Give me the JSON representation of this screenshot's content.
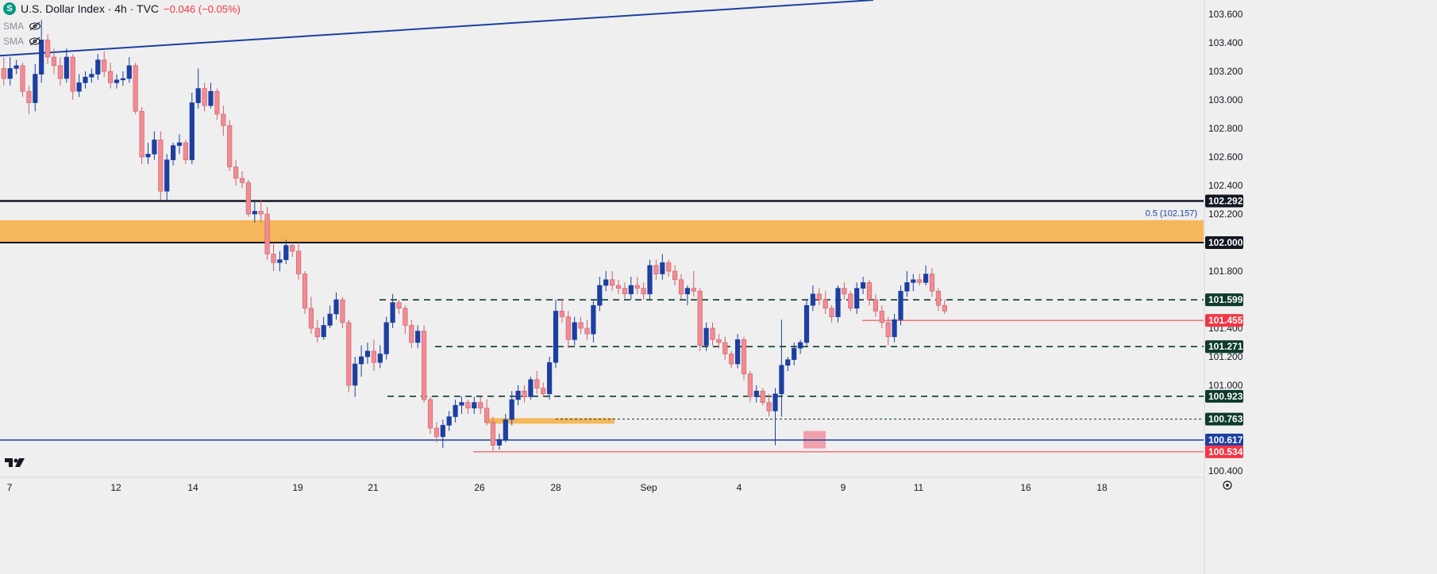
{
  "header": {
    "logo_letter": "S",
    "title": "U.S. Dollar Index · 4h · TVC",
    "change": "−0.046 (−0.05%)",
    "indicators": [
      "SMA",
      "SMA"
    ]
  },
  "price_axis": {
    "ticks": [
      "103.600",
      "103.400",
      "103.200",
      "103.000",
      "102.800",
      "102.600",
      "102.400",
      "102.200",
      "101.800",
      "101.400",
      "101.200",
      "101.000",
      "100.400"
    ],
    "tagged_levels": [
      {
        "label": "102.292",
        "color": "#131722"
      },
      {
        "label": "102.000",
        "color": "#131722"
      },
      {
        "label": "101.599",
        "color": "#0e3b2f"
      },
      {
        "label": "101.455",
        "color": "#f23645"
      },
      {
        "label": "101.271",
        "color": "#0e3b2f"
      },
      {
        "label": "100.923",
        "color": "#0e3b2f"
      },
      {
        "label": "100.763",
        "color": "#0e3b2f"
      },
      {
        "label": "100.617",
        "color": "#1c3fa0"
      },
      {
        "label": "100.534",
        "color": "#f23645"
      }
    ],
    "fib_label": "0.5 (102.157)"
  },
  "time_axis": {
    "ticks": [
      "7",
      "12",
      "14",
      "19",
      "21",
      "26",
      "28",
      "Sep",
      "4",
      "9",
      "11",
      "16",
      "18"
    ]
  },
  "colors": {
    "up": "#1c3fa0",
    "down": "#f28b93",
    "zone": "#f5b75a",
    "trendline": "#1c3fa0"
  },
  "chart_data": {
    "type": "candlestick",
    "symbol": "U.S. Dollar Index",
    "timeframe": "4h",
    "source": "TVC",
    "ylim": [
      100.3,
      103.7
    ],
    "candles": [
      [
        103.22,
        103.3,
        103.1,
        103.15
      ],
      [
        103.15,
        103.3,
        103.1,
        103.22
      ],
      [
        103.22,
        103.28,
        103.18,
        103.24
      ],
      [
        103.24,
        103.26,
        103.02,
        103.06
      ],
      [
        103.06,
        103.1,
        102.9,
        102.98
      ],
      [
        102.98,
        103.25,
        102.92,
        103.18
      ],
      [
        103.18,
        103.56,
        103.12,
        103.42
      ],
      [
        103.42,
        103.46,
        103.25,
        103.3
      ],
      [
        103.3,
        103.36,
        103.18,
        103.24
      ],
      [
        103.24,
        103.3,
        103.1,
        103.15
      ],
      [
        103.15,
        103.36,
        103.12,
        103.3
      ],
      [
        103.3,
        103.32,
        103.0,
        103.06
      ],
      [
        103.06,
        103.18,
        103.02,
        103.12
      ],
      [
        103.12,
        103.2,
        103.08,
        103.16
      ],
      [
        103.16,
        103.22,
        103.12,
        103.18
      ],
      [
        103.18,
        103.32,
        103.14,
        103.28
      ],
      [
        103.28,
        103.34,
        103.16,
        103.2
      ],
      [
        103.2,
        103.26,
        103.08,
        103.12
      ],
      [
        103.12,
        103.18,
        103.08,
        103.14
      ],
      [
        103.14,
        103.2,
        103.1,
        103.15
      ],
      [
        103.15,
        103.3,
        103.12,
        103.24
      ],
      [
        103.24,
        103.26,
        102.9,
        102.92
      ],
      [
        102.92,
        102.95,
        102.55,
        102.6
      ],
      [
        102.6,
        102.7,
        102.55,
        102.62
      ],
      [
        102.62,
        102.78,
        102.58,
        102.72
      ],
      [
        102.72,
        102.78,
        102.3,
        102.36
      ],
      [
        102.36,
        102.62,
        102.3,
        102.58
      ],
      [
        102.58,
        102.7,
        102.54,
        102.68
      ],
      [
        102.68,
        102.76,
        102.62,
        102.7
      ],
      [
        102.7,
        102.72,
        102.55,
        102.58
      ],
      [
        102.58,
        103.05,
        102.55,
        102.98
      ],
      [
        102.98,
        103.22,
        102.94,
        103.08
      ],
      [
        103.08,
        103.12,
        102.92,
        102.96
      ],
      [
        102.96,
        103.12,
        102.94,
        103.06
      ],
      [
        103.06,
        103.08,
        102.86,
        102.9
      ],
      [
        102.9,
        102.96,
        102.75,
        102.82
      ],
      [
        102.82,
        102.86,
        102.5,
        102.53
      ],
      [
        102.53,
        102.58,
        102.4,
        102.45
      ],
      [
        102.45,
        102.5,
        102.38,
        102.42
      ],
      [
        102.42,
        102.44,
        102.18,
        102.2
      ],
      [
        102.2,
        102.3,
        102.14,
        102.22
      ],
      [
        102.22,
        102.3,
        102.14,
        102.2
      ],
      [
        102.2,
        102.25,
        101.88,
        101.92
      ],
      [
        101.92,
        102.0,
        101.8,
        101.86
      ],
      [
        101.86,
        101.94,
        101.8,
        101.88
      ],
      [
        101.88,
        102.02,
        101.85,
        101.98
      ],
      [
        101.98,
        102.0,
        101.9,
        101.94
      ],
      [
        101.94,
        102.0,
        101.74,
        101.78
      ],
      [
        101.78,
        101.8,
        101.5,
        101.54
      ],
      [
        101.54,
        101.62,
        101.36,
        101.4
      ],
      [
        101.4,
        101.46,
        101.3,
        101.34
      ],
      [
        101.34,
        101.48,
        101.32,
        101.42
      ],
      [
        101.42,
        101.56,
        101.4,
        101.5
      ],
      [
        101.5,
        101.65,
        101.46,
        101.6
      ],
      [
        101.6,
        101.62,
        101.4,
        101.44
      ],
      [
        101.44,
        101.46,
        100.95,
        101.0
      ],
      [
        101.0,
        101.2,
        100.92,
        101.15
      ],
      [
        101.15,
        101.28,
        101.06,
        101.2
      ],
      [
        101.2,
        101.3,
        101.15,
        101.24
      ],
      [
        101.24,
        101.32,
        101.1,
        101.16
      ],
      [
        101.16,
        101.28,
        101.12,
        101.22
      ],
      [
        101.22,
        101.48,
        101.18,
        101.44
      ],
      [
        101.44,
        101.64,
        101.4,
        101.58
      ],
      [
        101.58,
        101.6,
        101.5,
        101.54
      ],
      [
        101.54,
        101.56,
        101.36,
        101.42
      ],
      [
        101.42,
        101.46,
        101.26,
        101.3
      ],
      [
        101.3,
        101.42,
        101.26,
        101.38
      ],
      [
        101.38,
        101.42,
        100.88,
        100.9
      ],
      [
        100.9,
        100.92,
        100.66,
        100.7
      ],
      [
        100.7,
        100.74,
        100.6,
        100.64
      ],
      [
        100.64,
        100.76,
        100.56,
        100.72
      ],
      [
        100.72,
        100.82,
        100.68,
        100.78
      ],
      [
        100.78,
        100.9,
        100.74,
        100.86
      ],
      [
        100.86,
        100.92,
        100.8,
        100.88
      ],
      [
        100.88,
        100.9,
        100.8,
        100.84
      ],
      [
        100.84,
        100.92,
        100.8,
        100.88
      ],
      [
        100.88,
        100.92,
        100.8,
        100.84
      ],
      [
        100.84,
        100.9,
        100.72,
        100.74
      ],
      [
        100.74,
        100.78,
        100.54,
        100.58
      ],
      [
        100.58,
        100.66,
        100.55,
        100.62
      ],
      [
        100.62,
        100.8,
        100.6,
        100.76
      ],
      [
        100.76,
        100.96,
        100.72,
        100.9
      ],
      [
        100.9,
        101.0,
        100.86,
        100.96
      ],
      [
        100.96,
        101.0,
        100.88,
        100.92
      ],
      [
        100.92,
        101.06,
        100.9,
        101.04
      ],
      [
        101.04,
        101.1,
        100.94,
        100.98
      ],
      [
        100.98,
        101.02,
        100.92,
        100.94
      ],
      [
        100.94,
        101.2,
        100.9,
        101.16
      ],
      [
        101.16,
        101.6,
        101.12,
        101.52
      ],
      [
        101.52,
        101.6,
        101.44,
        101.48
      ],
      [
        101.48,
        101.52,
        101.26,
        101.32
      ],
      [
        101.32,
        101.48,
        101.28,
        101.44
      ],
      [
        101.44,
        101.48,
        101.36,
        101.4
      ],
      [
        101.4,
        101.46,
        101.32,
        101.36
      ],
      [
        101.36,
        101.6,
        101.3,
        101.56
      ],
      [
        101.56,
        101.76,
        101.52,
        101.7
      ],
      [
        101.7,
        101.8,
        101.66,
        101.74
      ],
      [
        101.74,
        101.8,
        101.66,
        101.7
      ],
      [
        101.7,
        101.74,
        101.64,
        101.68
      ],
      [
        101.68,
        101.72,
        101.6,
        101.64
      ],
      [
        101.64,
        101.76,
        101.6,
        101.7
      ],
      [
        101.7,
        101.76,
        101.64,
        101.68
      ],
      [
        101.68,
        101.72,
        101.6,
        101.64
      ],
      [
        101.64,
        101.88,
        101.6,
        101.84
      ],
      [
        101.84,
        101.88,
        101.74,
        101.78
      ],
      [
        101.78,
        101.92,
        101.74,
        101.86
      ],
      [
        101.86,
        101.88,
        101.76,
        101.8
      ],
      [
        101.8,
        101.84,
        101.7,
        101.74
      ],
      [
        101.74,
        101.78,
        101.6,
        101.64
      ],
      [
        101.64,
        101.7,
        101.56,
        101.68
      ],
      [
        101.68,
        101.8,
        101.62,
        101.66
      ],
      [
        101.66,
        101.68,
        101.24,
        101.28
      ],
      [
        101.28,
        101.44,
        101.24,
        101.4
      ],
      [
        101.4,
        101.44,
        101.28,
        101.32
      ],
      [
        101.32,
        101.36,
        101.26,
        101.3
      ],
      [
        101.3,
        101.34,
        101.18,
        101.22
      ],
      [
        101.22,
        101.24,
        101.12,
        101.15
      ],
      [
        101.15,
        101.36,
        101.12,
        101.32
      ],
      [
        101.32,
        101.34,
        101.04,
        101.08
      ],
      [
        101.08,
        101.1,
        100.88,
        100.92
      ],
      [
        100.92,
        101.0,
        100.88,
        100.96
      ],
      [
        100.96,
        100.98,
        100.86,
        100.88
      ],
      [
        100.88,
        100.94,
        100.78,
        100.82
      ],
      [
        100.82,
        100.98,
        100.58,
        100.94
      ],
      [
        100.94,
        101.46,
        100.78,
        101.14
      ],
      [
        101.14,
        101.2,
        101.1,
        101.18
      ],
      [
        101.18,
        101.3,
        101.14,
        101.26
      ],
      [
        101.26,
        101.32,
        101.22,
        101.3
      ],
      [
        101.3,
        101.6,
        101.28,
        101.56
      ],
      [
        101.56,
        101.7,
        101.52,
        101.64
      ],
      [
        101.64,
        101.68,
        101.56,
        101.6
      ],
      [
        101.6,
        101.66,
        101.5,
        101.54
      ],
      [
        101.54,
        101.56,
        101.44,
        101.48
      ],
      [
        101.48,
        101.7,
        101.44,
        101.68
      ],
      [
        101.68,
        101.72,
        101.6,
        101.64
      ],
      [
        101.64,
        101.66,
        101.52,
        101.54
      ],
      [
        101.54,
        101.72,
        101.5,
        101.68
      ],
      [
        101.68,
        101.76,
        101.64,
        101.72
      ],
      [
        101.72,
        101.74,
        101.56,
        101.6
      ],
      [
        101.6,
        101.64,
        101.48,
        101.52
      ],
      [
        101.52,
        101.56,
        101.4,
        101.44
      ],
      [
        101.44,
        101.48,
        101.28,
        101.34
      ],
      [
        101.34,
        101.5,
        101.3,
        101.46
      ],
      [
        101.46,
        101.7,
        101.42,
        101.66
      ],
      [
        101.66,
        101.8,
        101.62,
        101.72
      ],
      [
        101.72,
        101.78,
        101.66,
        101.74
      ],
      [
        101.74,
        101.78,
        101.7,
        101.72
      ],
      [
        101.72,
        101.84,
        101.7,
        101.78
      ],
      [
        101.78,
        101.82,
        101.62,
        101.66
      ],
      [
        101.66,
        101.68,
        101.52,
        101.56
      ],
      [
        101.56,
        101.6,
        101.5,
        101.52
      ]
    ],
    "horizontal_levels": [
      102.292,
      102.0,
      101.599,
      101.455,
      101.271,
      100.923,
      100.763,
      100.617,
      100.534
    ],
    "zone": [
      102.0,
      102.157
    ]
  }
}
